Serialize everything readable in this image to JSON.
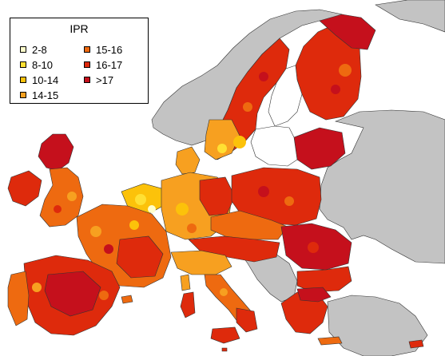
{
  "legend": {
    "title": "IPR",
    "items": [
      {
        "label": "2-8",
        "color": "#ffffcc"
      },
      {
        "label": "8-10",
        "color": "#ffe033"
      },
      {
        "label": "10-14",
        "color": "#fcc20a"
      },
      {
        "label": "14-15",
        "color": "#f7a020"
      },
      {
        "label": "15-16",
        "color": "#ee6a10"
      },
      {
        "label": "16-17",
        "color": "#de2a0c"
      },
      {
        "label": ">17",
        "color": "#c5101c"
      }
    ]
  },
  "no_data_color": "#c3c3c3"
}
